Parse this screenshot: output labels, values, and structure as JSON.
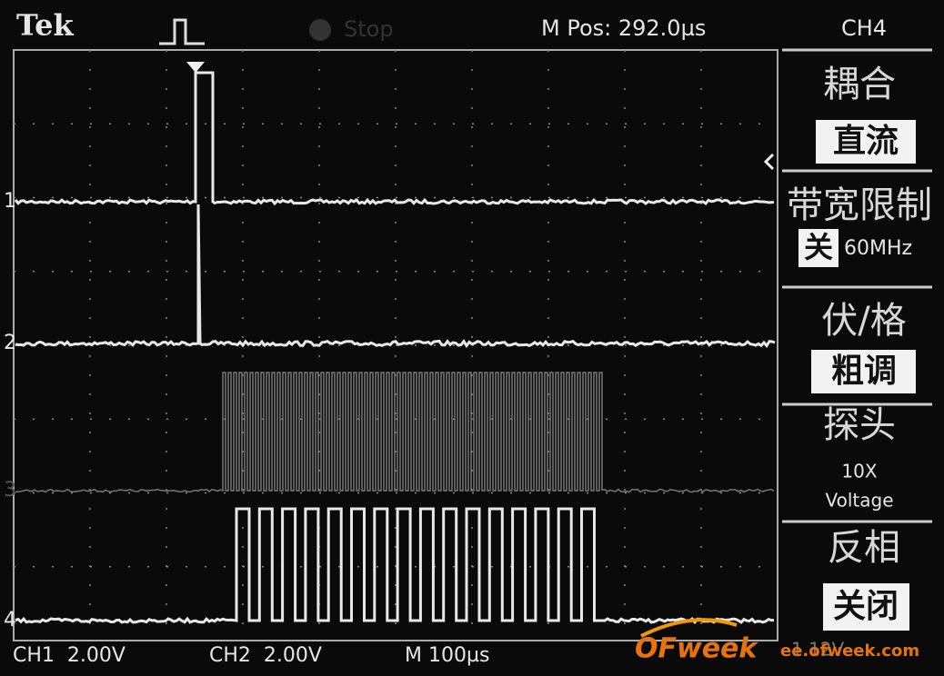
{
  "header": {
    "brand": "Tek",
    "status": "Stop",
    "position": "M Pos: 292.0µs"
  },
  "menu": {
    "title": "CH4",
    "items": [
      {
        "label": "耦合",
        "value": "直流"
      },
      {
        "label": "带宽限制",
        "value": "关",
        "detail": "60MHz"
      },
      {
        "label": "伏/格",
        "value": "粗调"
      },
      {
        "label": "探头",
        "value": "10X",
        "detail": "Voltage"
      },
      {
        "label": "反相",
        "value": "关闭"
      }
    ]
  },
  "channels": [
    "1",
    "2",
    "3",
    "4"
  ],
  "footer": {
    "ch1": "CH1  2.00V",
    "ch2": "CH2  2.00V",
    "timebase": "M 100µs",
    "trigger": "1.12V"
  },
  "watermark": {
    "logo": "OFweek",
    "url": "ee.ofweek.com"
  }
}
